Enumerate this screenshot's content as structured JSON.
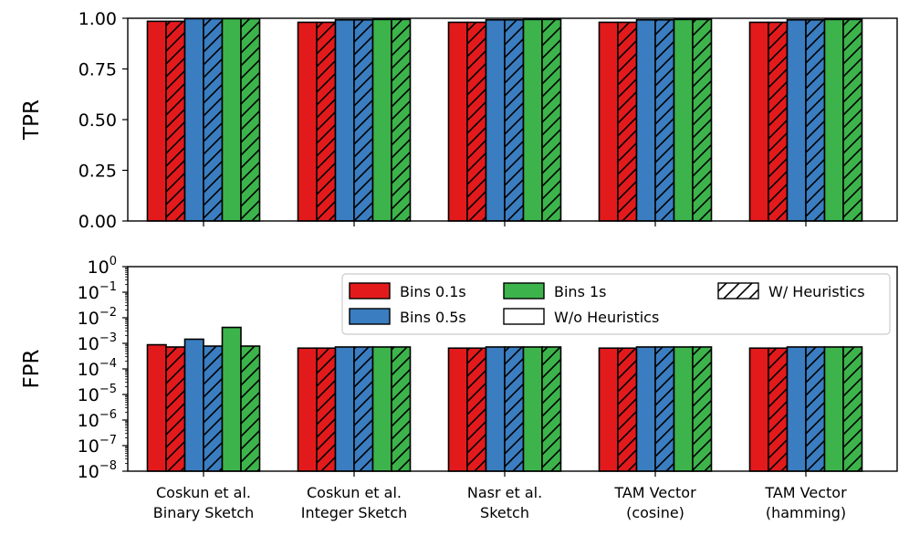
{
  "chart_data": [
    {
      "type": "bar",
      "panel": "top",
      "ylabel": "TPR",
      "yscale": "linear",
      "ylim": [
        0,
        1.0
      ],
      "yticks": [
        "0.00",
        "0.25",
        "0.50",
        "0.75",
        "1.00"
      ],
      "ytick_values": [
        0,
        0.25,
        0.5,
        0.75,
        1.0
      ],
      "categories": [
        "Coskun et al.\nBinary Sketch",
        "Coskun et al.\nInteger Sketch",
        "Nasr et al.\nSketch",
        "TAM Vector\n(cosine)",
        "TAM Vector\n(hamming)"
      ],
      "series": [
        {
          "name": "Bins 0.1s, W/o Heuristics",
          "color": "#e31a1c",
          "hatch": false,
          "values": [
            0.985,
            0.98,
            0.98,
            0.98,
            0.98
          ]
        },
        {
          "name": "Bins 0.1s, W/ Heuristics",
          "color": "#e31a1c",
          "hatch": true,
          "values": [
            0.985,
            0.98,
            0.98,
            0.98,
            0.98
          ]
        },
        {
          "name": "Bins 0.5s, W/o Heuristics",
          "color": "#3a7dc0",
          "hatch": false,
          "values": [
            0.998,
            0.992,
            0.992,
            0.992,
            0.992
          ]
        },
        {
          "name": "Bins 0.5s, W/ Heuristics",
          "color": "#3a7dc0",
          "hatch": true,
          "values": [
            0.998,
            0.992,
            0.992,
            0.992,
            0.992
          ]
        },
        {
          "name": "Bins 1s, W/o Heuristics",
          "color": "#3cb44b",
          "hatch": false,
          "values": [
            0.998,
            0.994,
            0.994,
            0.994,
            0.994
          ]
        },
        {
          "name": "Bins 1s, W/ Heuristics",
          "color": "#3cb44b",
          "hatch": true,
          "values": [
            0.998,
            0.994,
            0.994,
            0.994,
            0.994
          ]
        }
      ]
    },
    {
      "type": "bar",
      "panel": "bottom",
      "ylabel": "FPR",
      "yscale": "log",
      "ylim": [
        1e-08,
        1
      ],
      "ytick_exponents": [
        0,
        -1,
        -2,
        -3,
        -4,
        -5,
        -6,
        -7,
        -8
      ],
      "ytick_base": "10",
      "categories": [
        "Coskun et al.\nBinary Sketch",
        "Coskun et al.\nInteger Sketch",
        "Nasr et al.\nSketch",
        "TAM Vector\n(cosine)",
        "TAM Vector\n(hamming)"
      ],
      "series": [
        {
          "name": "Bins 0.1s, W/o Heuristics",
          "color": "#e31a1c",
          "hatch": false,
          "values": [
            0.00088,
            0.00065,
            0.00065,
            0.00065,
            0.00065
          ]
        },
        {
          "name": "Bins 0.1s, W/ Heuristics",
          "color": "#e31a1c",
          "hatch": true,
          "values": [
            0.00072,
            0.00065,
            0.00065,
            0.00065,
            0.00065
          ]
        },
        {
          "name": "Bins 0.5s, W/o Heuristics",
          "color": "#3a7dc0",
          "hatch": false,
          "values": [
            0.00145,
            0.00072,
            0.00072,
            0.00072,
            0.00072
          ]
        },
        {
          "name": "Bins 0.5s, W/ Heuristics",
          "color": "#3a7dc0",
          "hatch": true,
          "values": [
            0.00078,
            0.00072,
            0.00072,
            0.00072,
            0.00072
          ]
        },
        {
          "name": "Bins 1s, W/o Heuristics",
          "color": "#3cb44b",
          "hatch": false,
          "values": [
            0.0042,
            0.00072,
            0.00072,
            0.00072,
            0.00072
          ]
        },
        {
          "name": "Bins 1s, W/ Heuristics",
          "color": "#3cb44b",
          "hatch": true,
          "values": [
            0.00078,
            0.00072,
            0.00072,
            0.00072,
            0.00072
          ]
        }
      ],
      "legend": {
        "location": "upper-right",
        "entries": [
          {
            "label": "Bins 0.1s",
            "color": "#e31a1c",
            "hatch": false
          },
          {
            "label": "Bins 0.5s",
            "color": "#3a7dc0",
            "hatch": false
          },
          {
            "label": "Bins 1s",
            "color": "#3cb44b",
            "hatch": false
          },
          {
            "label": "W/o Heuristics",
            "color": "#ffffff",
            "hatch": false
          },
          {
            "label": "W/ Heuristics",
            "color": "#ffffff",
            "hatch": true
          }
        ]
      }
    }
  ]
}
